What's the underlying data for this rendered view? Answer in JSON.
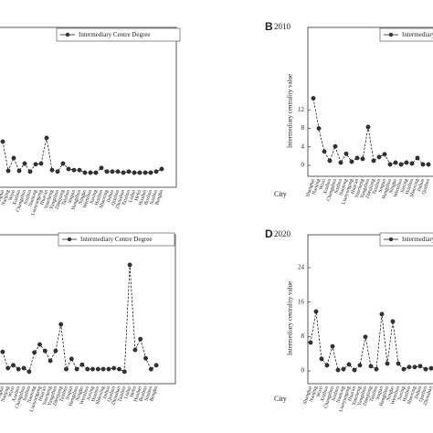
{
  "chart_data": [
    {
      "type": "line",
      "categories": [
        "Shanghai",
        "Nanjing",
        "Wuxi",
        "Xuzhou",
        "Changzhou",
        "Suzhou",
        "Nantong",
        "Lianyungang",
        "Huai'an",
        "Yancheng",
        "Yangzhou",
        "Zhenjiang",
        "Taizhou",
        "Suqian",
        "Hangzhou",
        "Ningbo",
        "Wenzhou",
        "Jiaxing",
        "Huzhou",
        "Shaoxing",
        "Jinhua",
        "Quzhou",
        "Zhoushan",
        "Taizhou",
        "Lishui",
        "Hefei",
        "Huaibei",
        "Bozhou",
        "Suzhou",
        "Bengbu"
      ],
      "series": [
        {
          "name": "Intermediary Centre Degree",
          "color": "#000000",
          "values": [
            10,
            2,
            5.5,
            2,
            4,
            1.8,
            3.8,
            4,
            11,
            2.2,
            1.8,
            4,
            2.5,
            2.2,
            2.2,
            1.5,
            1.5,
            1.5,
            2.8,
            1.8,
            1.8,
            1.8,
            1.5,
            1.8,
            1.5,
            1.5,
            1.5,
            1.5,
            1.8,
            2.5
          ]
        }
      ],
      "ylim": [
        0,
        40
      ]
    },
    {
      "type": "line",
      "label": "B",
      "title": "2010",
      "y_label": "Intermediary centrality value",
      "x_label": "City",
      "categories": [
        "Shanghai",
        "Nanjing",
        "Wuxi",
        "Xuzhou",
        "Changzhou",
        "Suzhou",
        "Nantong",
        "Lianyungang",
        "Huai'an",
        "Yancheng",
        "Yangzhou",
        "Zhenjiang",
        "Taizhou",
        "Suqian",
        "Hangzhou",
        "Ningbo",
        "Wenzhou",
        "Jiaxing",
        "Huzhou",
        "Shaoxing",
        "Jinhua",
        "Quzhou"
      ],
      "series": [
        {
          "name": "Intermediary Centre Degree",
          "color": "#000000",
          "values": [
            14.5,
            8,
            3,
            1,
            4.1,
            0.6,
            2.5,
            0.8,
            1.6,
            1.4,
            8.3,
            1,
            1.8,
            2.4,
            0.2,
            0.6,
            0.2,
            0.6,
            0.4,
            1.6,
            0.2,
            0.2
          ]
        }
      ],
      "ylim": [
        0,
        16
      ],
      "yticks": [
        0,
        4,
        8,
        12
      ]
    },
    {
      "type": "line",
      "categories": [
        "Shanghai",
        "Nanjing",
        "Wuxi",
        "Xuzhou",
        "Changzhou",
        "Suzhou",
        "Nantong",
        "Lianyungang",
        "Huai'an",
        "Yancheng",
        "Yangzhou",
        "Zhenjiang",
        "Taizhou",
        "Suqian",
        "Hangzhou",
        "Ningbo",
        "Wenzhou",
        "Jiaxing",
        "Huzhou",
        "Shaoxing",
        "Jinhua",
        "Quzhou",
        "Zhoushan",
        "Taizhou",
        "Lishui",
        "Hefei",
        "Huaibei",
        "Bozhou",
        "Suzhou",
        "Bengbu"
      ],
      "series": [
        {
          "name": "Intermediary Centre Degree",
          "color": "#000000",
          "values": [
            7.1,
            2,
            2.9,
            1.7,
            2,
            0.9,
            6.9,
            9.4,
            7.4,
            4.3,
            7.4,
            15.7,
            1.7,
            4.9,
            1.7,
            3.1,
            1.7,
            1.7,
            1.7,
            1.7,
            1.7,
            2,
            1.7,
            0.9,
            34.3,
            7.7,
            11.1,
            5.1,
            1.7,
            2.9
          ]
        }
      ],
      "ylim": [
        0,
        40
      ]
    },
    {
      "type": "line",
      "label": "D",
      "title": "2020",
      "y_label": "Intermediary centrality value",
      "x_label": "City",
      "categories": [
        "Shanghai",
        "Nanjing",
        "Wuxi",
        "Xuzhou",
        "Changzhou",
        "Suzhou",
        "Nantong",
        "Lianyungang",
        "Huai'an",
        "Yancheng",
        "Yangzhou",
        "Zhenjiang",
        "Taizhou",
        "Suqian",
        "Hangzhou",
        "Ningbo",
        "Wenzhou",
        "Jiaxing",
        "Huzhou",
        "Shaoxing",
        "Jinhua",
        "Quzhou",
        "Zhoushan"
      ],
      "series": [
        {
          "name": "Intermediary Centre Degree",
          "color": "#000000",
          "values": [
            6.6,
            13.8,
            2.8,
            1.3,
            5.7,
            0.2,
            0.4,
            1.5,
            0.2,
            1.3,
            7.9,
            1.1,
            0.4,
            13.2,
            1.7,
            11.5,
            1.7,
            0.4,
            0.9,
            0.9,
            1.1,
            0.4,
            0.6
          ]
        }
      ],
      "ylim": [
        0,
        24
      ],
      "yticks": [
        0,
        8,
        16,
        24
      ]
    }
  ]
}
